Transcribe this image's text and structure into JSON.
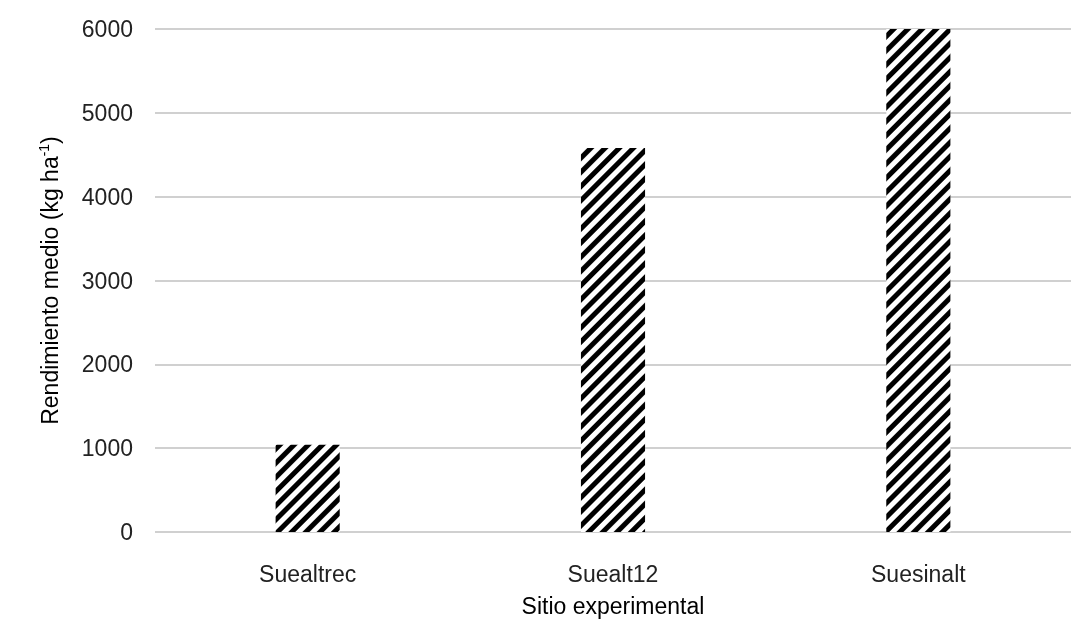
{
  "chart_data": {
    "type": "bar",
    "xlabel": "Sitio experimental",
    "ylabel": "Rendimiento medio (kg ha$^{-1}$)",
    "categories": [
      "Suealtrec",
      "Suealt12",
      "Suesinalt"
    ],
    "values": [
      1040,
      4580,
      6000
    ],
    "color": "#000000",
    "ylim": [
      0,
      6000
    ],
    "yticks": [
      0,
      1000,
      2000,
      3000,
      4000,
      5000,
      6000
    ],
    "grid": "y"
  }
}
